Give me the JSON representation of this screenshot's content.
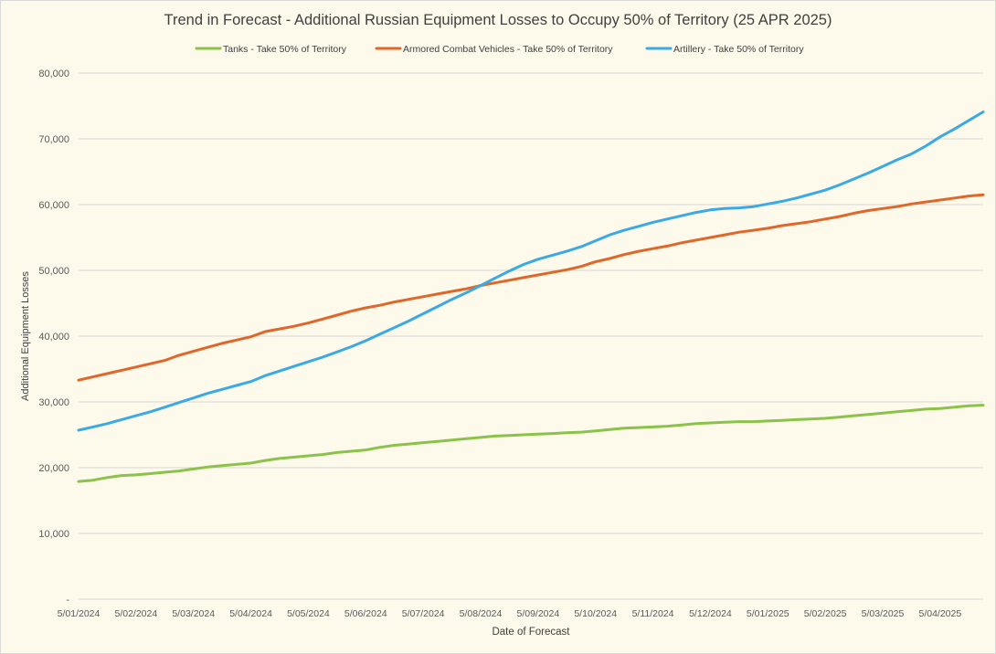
{
  "chart_data": {
    "type": "line",
    "title": "Trend in Forecast - Additional Russian Equipment Losses to Occupy 50% of Territory (25 APR 2025)",
    "xlabel": "Date of Forecast",
    "ylabel": "Additional Equipment Losses",
    "ylim": [
      0,
      80000
    ],
    "y_ticks": [
      0,
      10000,
      20000,
      30000,
      40000,
      50000,
      60000,
      70000,
      80000
    ],
    "y_tick_labels": [
      "-",
      "10,000",
      "20,000",
      "30,000",
      "40,000",
      "50,000",
      "60,000",
      "70,000",
      "80,000"
    ],
    "x_tick_labels": [
      "5/01/2024",
      "5/02/2024",
      "5/03/2024",
      "5/04/2024",
      "5/05/2024",
      "5/06/2024",
      "5/07/2024",
      "5/08/2024",
      "5/09/2024",
      "5/10/2024",
      "5/11/2024",
      "5/12/2024",
      "5/01/2025",
      "5/02/2025",
      "5/03/2025",
      "5/04/2025"
    ],
    "x_tick_positions": [
      0,
      1,
      2,
      3,
      4,
      5,
      6,
      7,
      8,
      9,
      10,
      11,
      12,
      13,
      14,
      15
    ],
    "xlim": [
      0,
      15.75
    ],
    "grid": true,
    "legend_position": "top",
    "series": [
      {
        "name": "Tanks - Take 50% of Territory",
        "color": "#8BC34A",
        "x": [
          0,
          0.25,
          0.5,
          0.75,
          1,
          1.25,
          1.5,
          1.75,
          2,
          2.25,
          2.5,
          2.75,
          3,
          3.25,
          3.5,
          3.75,
          4,
          4.25,
          4.5,
          4.75,
          5,
          5.25,
          5.5,
          5.75,
          6,
          6.25,
          6.5,
          6.75,
          7,
          7.25,
          7.5,
          7.75,
          8,
          8.25,
          8.5,
          8.75,
          9,
          9.25,
          9.5,
          9.75,
          10,
          10.25,
          10.5,
          10.75,
          11,
          11.25,
          11.5,
          11.75,
          12,
          12.25,
          12.5,
          12.75,
          13,
          13.25,
          13.5,
          13.75,
          14,
          14.25,
          14.5,
          14.75,
          15,
          15.25,
          15.5,
          15.75
        ],
        "values": [
          17900,
          18100,
          18500,
          18800,
          18900,
          19100,
          19300,
          19500,
          19800,
          20100,
          20300,
          20500,
          20700,
          21100,
          21400,
          21600,
          21800,
          22000,
          22300,
          22500,
          22700,
          23100,
          23400,
          23600,
          23800,
          24000,
          24200,
          24400,
          24600,
          24800,
          24900,
          25000,
          25100,
          25200,
          25300,
          25400,
          25600,
          25800,
          26000,
          26100,
          26200,
          26300,
          26500,
          26700,
          26800,
          26900,
          27000,
          27000,
          27100,
          27200,
          27300,
          27400,
          27500,
          27700,
          27900,
          28100,
          28300,
          28500,
          28700,
          28900,
          29000,
          29200,
          29400,
          29500
        ]
      },
      {
        "name": "Armored Combat Vehicles - Take 50% of Territory",
        "color": "#E0662A",
        "x": [
          0,
          0.25,
          0.5,
          0.75,
          1,
          1.25,
          1.5,
          1.75,
          2,
          2.25,
          2.5,
          2.75,
          3,
          3.25,
          3.5,
          3.75,
          4,
          4.25,
          4.5,
          4.75,
          5,
          5.25,
          5.5,
          5.75,
          6,
          6.25,
          6.5,
          6.75,
          7,
          7.25,
          7.5,
          7.75,
          8,
          8.25,
          8.5,
          8.75,
          9,
          9.25,
          9.5,
          9.75,
          10,
          10.25,
          10.5,
          10.75,
          11,
          11.25,
          11.5,
          11.75,
          12,
          12.25,
          12.5,
          12.75,
          13,
          13.25,
          13.5,
          13.75,
          14,
          14.25,
          14.5,
          14.75,
          15,
          15.25,
          15.5,
          15.75
        ],
        "values": [
          33300,
          33800,
          34300,
          34800,
          35300,
          35800,
          36300,
          37100,
          37700,
          38300,
          38900,
          39400,
          39900,
          40700,
          41100,
          41500,
          42000,
          42600,
          43200,
          43800,
          44300,
          44700,
          45200,
          45600,
          46000,
          46400,
          46800,
          47200,
          47700,
          48100,
          48500,
          48900,
          49300,
          49700,
          50100,
          50600,
          51300,
          51800,
          52400,
          52900,
          53300,
          53700,
          54200,
          54600,
          55000,
          55400,
          55800,
          56100,
          56400,
          56800,
          57100,
          57400,
          57800,
          58200,
          58700,
          59100,
          59400,
          59700,
          60100,
          60400,
          60700,
          61000,
          61300,
          61500
        ]
      },
      {
        "name": "Artillery - Take 50% of Territory",
        "color": "#3BA9E6",
        "x": [
          0,
          0.25,
          0.5,
          0.75,
          1,
          1.25,
          1.5,
          1.75,
          2,
          2.25,
          2.5,
          2.75,
          3,
          3.25,
          3.5,
          3.75,
          4,
          4.25,
          4.5,
          4.75,
          5,
          5.25,
          5.5,
          5.75,
          6,
          6.25,
          6.5,
          6.75,
          7,
          7.25,
          7.5,
          7.75,
          8,
          8.25,
          8.5,
          8.75,
          9,
          9.25,
          9.5,
          9.75,
          10,
          10.25,
          10.5,
          10.75,
          11,
          11.25,
          11.5,
          11.75,
          12,
          12.25,
          12.5,
          12.75,
          13,
          13.25,
          13.5,
          13.75,
          14,
          14.25,
          14.5,
          14.75,
          15,
          15.25,
          15.5,
          15.75
        ],
        "values": [
          25700,
          26200,
          26700,
          27300,
          27900,
          28500,
          29200,
          29900,
          30600,
          31300,
          31900,
          32500,
          33100,
          34000,
          34700,
          35400,
          36100,
          36800,
          37600,
          38400,
          39300,
          40300,
          41300,
          42300,
          43400,
          44500,
          45600,
          46600,
          47700,
          48800,
          49900,
          50900,
          51700,
          52300,
          52900,
          53600,
          54500,
          55400,
          56100,
          56700,
          57300,
          57800,
          58300,
          58800,
          59200,
          59400,
          59500,
          59700,
          60100,
          60500,
          61000,
          61600,
          62200,
          63000,
          63900,
          64800,
          65800,
          66800,
          67700,
          68900,
          70300,
          71500,
          72800,
          74100
        ]
      }
    ]
  }
}
